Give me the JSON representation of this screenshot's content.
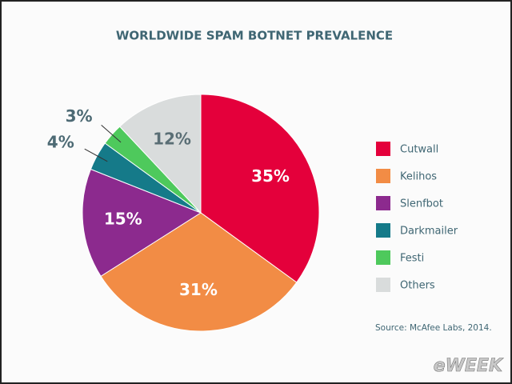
{
  "chart_data": {
    "type": "pie",
    "title": "WORLDWIDE SPAM BOTNET PREVALENCE",
    "categories": [
      "Cutwall",
      "Kelihos",
      "Slenfbot",
      "Darkmailer",
      "Festi",
      "Others"
    ],
    "values": [
      35,
      31,
      15,
      4,
      3,
      12
    ],
    "value_labels": [
      "35%",
      "31%",
      "15%",
      "4%",
      "3%",
      "12%"
    ],
    "colors": [
      "#e4003b",
      "#f28c45",
      "#8c2a8e",
      "#157a89",
      "#4ec95c",
      "#d9dcdc"
    ],
    "legend": "right",
    "source": "Source: McAfee Labs, 2014.",
    "watermark": "eWEEK"
  }
}
